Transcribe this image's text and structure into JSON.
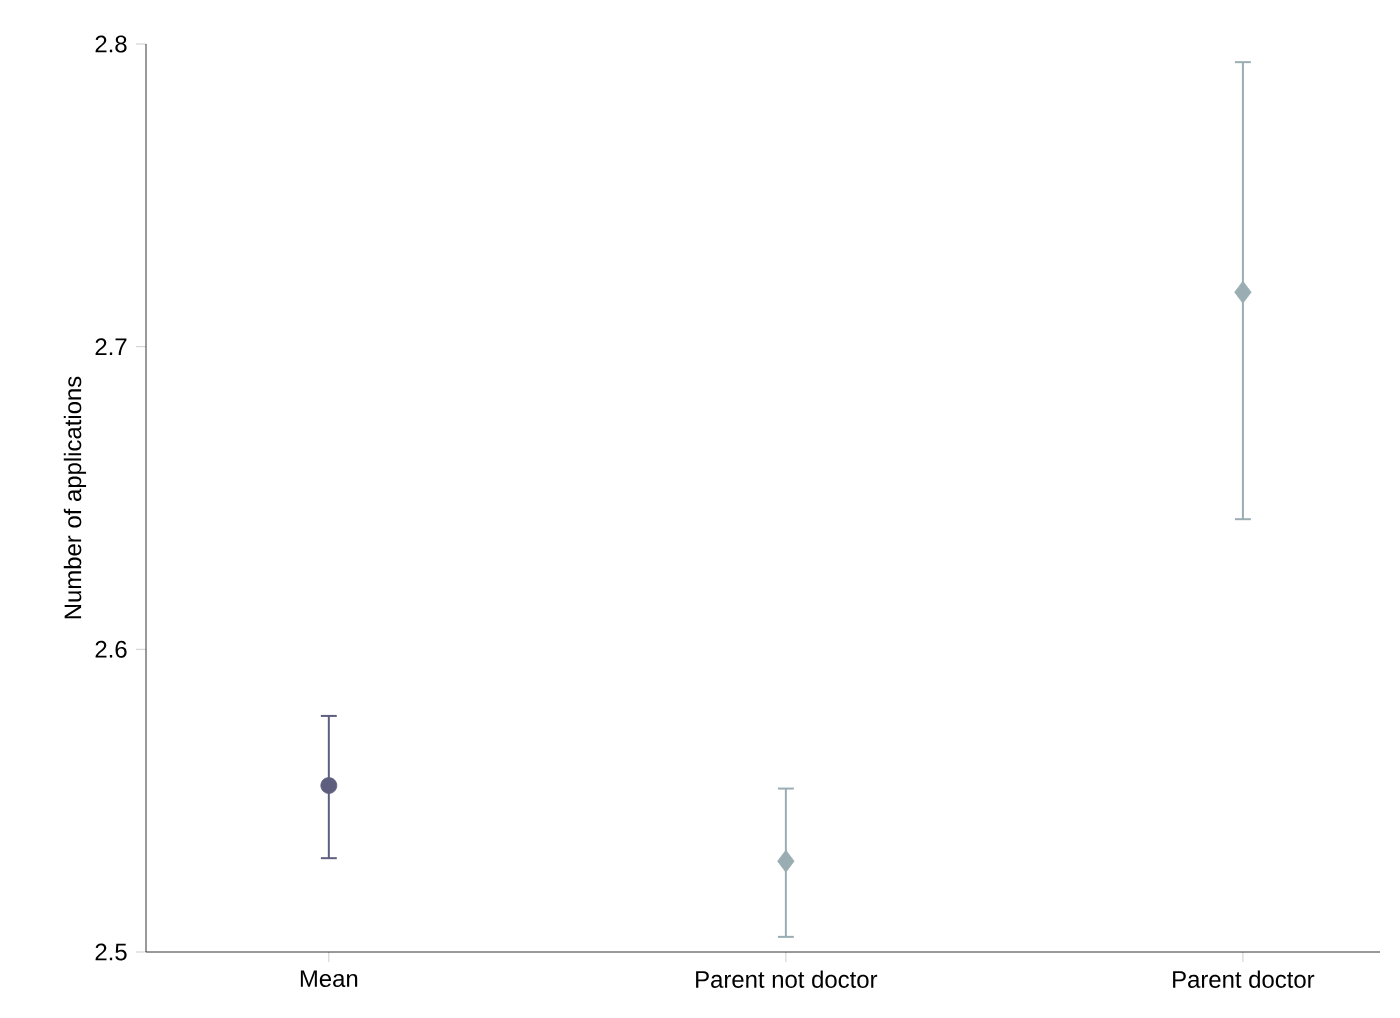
{
  "chart_data": {
    "type": "scatter",
    "ylabel": "Number of applications",
    "categories": [
      "Mean",
      "Parent not doctor",
      "Parent doctor"
    ],
    "series": [
      {
        "color": "#5e5e7e",
        "marker": "circle",
        "values": [
          2.555,
          null,
          null
        ],
        "errors": [
          [
            2.531,
            2.578
          ],
          null,
          null
        ]
      },
      {
        "color": "#9aadb2",
        "marker": "diamond",
        "values": [
          null,
          2.53,
          2.718
        ],
        "errors": [
          null,
          [
            2.505,
            2.554
          ],
          [
            2.643,
            2.794
          ]
        ]
      }
    ],
    "ylim": [
      2.5,
      2.8
    ],
    "yticks": [
      2.5,
      2.6,
      2.7,
      2.8
    ],
    "grid": false
  }
}
